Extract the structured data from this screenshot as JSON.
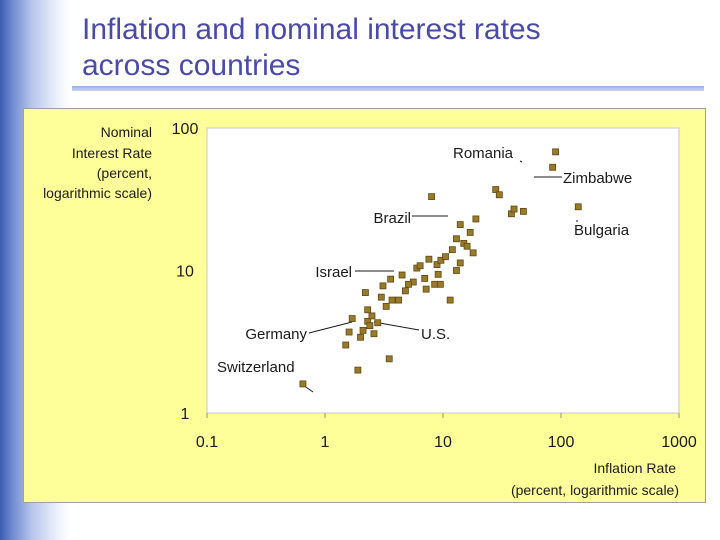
{
  "slide": {
    "title_line1": "Inflation and nominal interest rates",
    "title_line2": "across countries"
  },
  "colors": {
    "title": "#4a4aa8",
    "panel": "#ffff99",
    "marker_fill": "#9a7a28",
    "marker_edge": "#5a4a14"
  },
  "chart_data": {
    "type": "scatter",
    "title": "",
    "xlabel": "Inflation Rate",
    "xlabel_sub": "(percent, logarithmic scale)",
    "ylabel_lines": [
      "Nominal",
      "Interest Rate"
    ],
    "ylabel_sub_lines": [
      "(percent,",
      "logarithmic scale)"
    ],
    "xscale": "log",
    "yscale": "log",
    "xlim": [
      0.1,
      1000
    ],
    "ylim": [
      1,
      100
    ],
    "xticks": [
      "0.1",
      "1",
      "10",
      "100",
      "1000"
    ],
    "yticks": [
      "1",
      "10",
      "100"
    ],
    "points": [
      {
        "x": 0.65,
        "y": 1.6
      },
      {
        "x": 1.6,
        "y": 3.7
      },
      {
        "x": 2.0,
        "y": 3.4
      },
      {
        "x": 2.3,
        "y": 4.4
      },
      {
        "x": 2.5,
        "y": 4.8
      },
      {
        "x": 2.8,
        "y": 4.3
      },
      {
        "x": 1.7,
        "y": 4.6
      },
      {
        "x": 2.3,
        "y": 5.3
      },
      {
        "x": 3.3,
        "y": 5.6
      },
      {
        "x": 2.2,
        "y": 7.0
      },
      {
        "x": 3.1,
        "y": 7.8
      },
      {
        "x": 3.6,
        "y": 8.7
      },
      {
        "x": 4.5,
        "y": 9.3
      },
      {
        "x": 5.6,
        "y": 8.3
      },
      {
        "x": 7.0,
        "y": 8.8
      },
      {
        "x": 8.9,
        "y": 11
      },
      {
        "x": 7.6,
        "y": 12
      },
      {
        "x": 9.6,
        "y": 11.8
      },
      {
        "x": 6.0,
        "y": 10.4
      },
      {
        "x": 9.1,
        "y": 9.4
      },
      {
        "x": 10.5,
        "y": 12.5
      },
      {
        "x": 12,
        "y": 14
      },
      {
        "x": 15,
        "y": 15.5
      },
      {
        "x": 13,
        "y": 16.7
      },
      {
        "x": 16,
        "y": 14.8
      },
      {
        "x": 17,
        "y": 18.5
      },
      {
        "x": 18,
        "y": 13.3
      },
      {
        "x": 14,
        "y": 21
      },
      {
        "x": 19,
        "y": 23
      },
      {
        "x": 28,
        "y": 37
      },
      {
        "x": 30,
        "y": 34
      },
      {
        "x": 38,
        "y": 25
      },
      {
        "x": 40,
        "y": 27
      },
      {
        "x": 48,
        "y": 26
      },
      {
        "x": 8,
        "y": 33
      },
      {
        "x": 13,
        "y": 10
      },
      {
        "x": 8.5,
        "y": 8
      },
      {
        "x": 14,
        "y": 11.3
      },
      {
        "x": 3.0,
        "y": 6.5
      },
      {
        "x": 1.5,
        "y": 3.0
      },
      {
        "x": 2.6,
        "y": 3.6
      },
      {
        "x": 3.5,
        "y": 2.4
      },
      {
        "x": 4.8,
        "y": 7.2
      },
      {
        "x": 11.5,
        "y": 6.2
      },
      {
        "x": 7.2,
        "y": 7.4
      },
      {
        "x": 6.4,
        "y": 10.8
      },
      {
        "x": 9.5,
        "y": 8.0
      },
      {
        "x": 2.4,
        "y": 4.1
      },
      {
        "x": 1.9,
        "y": 2.0
      },
      {
        "x": 5.1,
        "y": 8.0
      },
      {
        "x": 4.2,
        "y": 6.2
      },
      {
        "x": 2.1,
        "y": 3.8
      },
      {
        "x": 3.7,
        "y": 6.2
      },
      {
        "x": 85,
        "y": 53
      },
      {
        "x": 90,
        "y": 68
      },
      {
        "x": 140,
        "y": 28
      }
    ],
    "annotations": [
      {
        "text": "Romania",
        "x": 85,
        "y": 68,
        "point_x": 85,
        "point_y": 68
      },
      {
        "text": "Zimbabwe",
        "x": 110,
        "y": 53,
        "point_x": 90,
        "point_y": 53
      },
      {
        "text": "Brazil",
        "x": 8,
        "y": 27,
        "point_x": 12,
        "point_y": 26
      },
      {
        "text": "Bulgaria",
        "x": 140,
        "y": 21,
        "point_x": 140,
        "point_y": 28
      },
      {
        "text": "Israel",
        "x": 2.2,
        "y": 11,
        "point_x": 4.8,
        "point_y": 11
      },
      {
        "text": "Germany",
        "x": 1.5,
        "y": 4.5,
        "point_x": 3.0,
        "point_y": 4.5
      },
      {
        "text": "U.S.",
        "x": 10,
        "y": 4.5,
        "point_x": 3.3,
        "point_y": 5.0
      },
      {
        "text": "Switzerland",
        "x": 0.85,
        "y": 2.4,
        "point_x": 0.65,
        "point_y": 1.6
      }
    ]
  }
}
